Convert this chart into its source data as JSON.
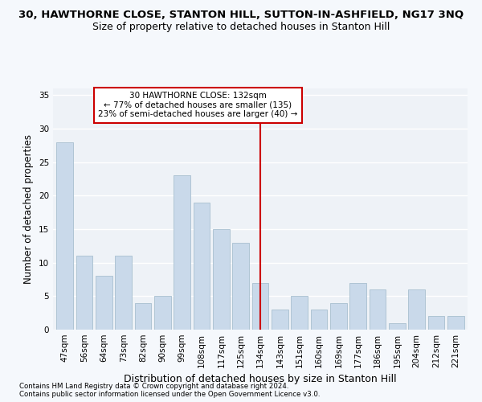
{
  "title": "30, HAWTHORNE CLOSE, STANTON HILL, SUTTON-IN-ASHFIELD, NG17 3NQ",
  "subtitle": "Size of property relative to detached houses in Stanton Hill",
  "xlabel": "Distribution of detached houses by size in Stanton Hill",
  "ylabel": "Number of detached properties",
  "categories": [
    "47sqm",
    "56sqm",
    "64sqm",
    "73sqm",
    "82sqm",
    "90sqm",
    "99sqm",
    "108sqm",
    "117sqm",
    "125sqm",
    "134sqm",
    "143sqm",
    "151sqm",
    "160sqm",
    "169sqm",
    "177sqm",
    "186sqm",
    "195sqm",
    "204sqm",
    "212sqm",
    "221sqm"
  ],
  "values": [
    28,
    11,
    8,
    11,
    4,
    5,
    23,
    19,
    15,
    13,
    7,
    3,
    5,
    3,
    4,
    7,
    6,
    1,
    6,
    2,
    2
  ],
  "bar_color": "#c9d9ea",
  "bar_edge_color": "#a8bfcf",
  "vline_color": "#cc0000",
  "ylim": [
    0,
    36
  ],
  "yticks": [
    0,
    5,
    10,
    15,
    20,
    25,
    30,
    35
  ],
  "annotation_text": "30 HAWTHORNE CLOSE: 132sqm\n← 77% of detached houses are smaller (135)\n23% of semi-detached houses are larger (40) →",
  "annotation_box_color": "#ffffff",
  "annotation_box_edge": "#cc0000",
  "footer1": "Contains HM Land Registry data © Crown copyright and database right 2024.",
  "footer2": "Contains public sector information licensed under the Open Government Licence v3.0.",
  "bg_color": "#eef2f7",
  "grid_color": "#ffffff",
  "title_fontsize": 9.5,
  "subtitle_fontsize": 9,
  "xlabel_fontsize": 9,
  "ylabel_fontsize": 8.5,
  "tick_fontsize": 7.5,
  "footer_fontsize": 6.2,
  "annotation_fontsize": 7.5
}
